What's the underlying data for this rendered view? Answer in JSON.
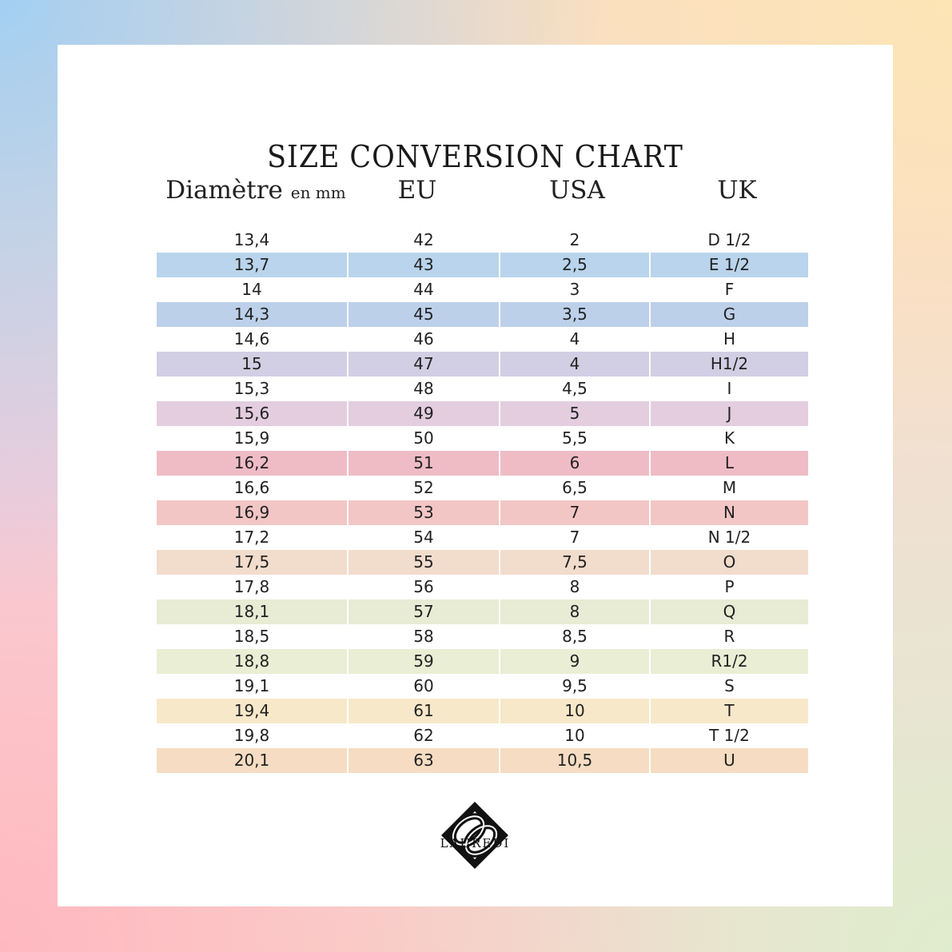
{
  "title": "SIZE CONVERSION CHART",
  "headers": {
    "diameter": "Diamètre",
    "diameter_unit": "en mm",
    "eu": "EU",
    "usa": "USA",
    "uk": "UK"
  },
  "rows": [
    {
      "d": "13,4",
      "eu": "42",
      "usa": "2",
      "uk": "D 1/2",
      "color": ""
    },
    {
      "d": "13,7",
      "eu": "43",
      "usa": "2,5",
      "uk": "E 1/2",
      "color": "#b9d4ec"
    },
    {
      "d": "14",
      "eu": "44",
      "usa": "3",
      "uk": "F",
      "color": ""
    },
    {
      "d": "14,3",
      "eu": "45",
      "usa": "3,5",
      "uk": "G",
      "color": "#bdd0ea"
    },
    {
      "d": "14,6",
      "eu": "46",
      "usa": "4",
      "uk": "H",
      "color": ""
    },
    {
      "d": "15",
      "eu": "47",
      "usa": "4",
      "uk": "H1/2",
      "color": "#d2cee3"
    },
    {
      "d": "15,3",
      "eu": "48",
      "usa": "4,5",
      "uk": "I",
      "color": ""
    },
    {
      "d": "15,6",
      "eu": "49",
      "usa": "5",
      "uk": "J",
      "color": "#e3cddf"
    },
    {
      "d": "15,9",
      "eu": "50",
      "usa": "5,5",
      "uk": "K",
      "color": ""
    },
    {
      "d": "16,2",
      "eu": "51",
      "usa": "6",
      "uk": "L",
      "color": "#efbcc6"
    },
    {
      "d": "16,6",
      "eu": "52",
      "usa": "6,5",
      "uk": "M",
      "color": ""
    },
    {
      "d": "16,9",
      "eu": "53",
      "usa": "7",
      "uk": "N",
      "color": "#f2c6c5"
    },
    {
      "d": "17,2",
      "eu": "54",
      "usa": "7",
      "uk": "N 1/2",
      "color": ""
    },
    {
      "d": "17,5",
      "eu": "55",
      "usa": "7,5",
      "uk": "O",
      "color": "#f2dccc"
    },
    {
      "d": "17,8",
      "eu": "56",
      "usa": "8",
      "uk": "P",
      "color": ""
    },
    {
      "d": "18,1",
      "eu": "57",
      "usa": "8",
      "uk": "Q",
      "color": "#e8ecd4"
    },
    {
      "d": "18,5",
      "eu": "58",
      "usa": "8,5",
      "uk": "R",
      "color": ""
    },
    {
      "d": "18,8",
      "eu": "59",
      "usa": "9",
      "uk": "R1/2",
      "color": "#eaeed4"
    },
    {
      "d": "19,1",
      "eu": "60",
      "usa": "9,5",
      "uk": "S",
      "color": ""
    },
    {
      "d": "19,4",
      "eu": "61",
      "usa": "10",
      "uk": "T",
      "color": "#f7e8c9"
    },
    {
      "d": "19,8",
      "eu": "62",
      "usa": "10",
      "uk": "T 1/2",
      "color": ""
    },
    {
      "d": "20,1",
      "eu": "63",
      "usa": "10,5",
      "uk": "U",
      "color": "#f5dcc2"
    }
  ],
  "logo": {
    "icon": "lauredi-knot-logo-icon",
    "brand": "LAUREDI"
  }
}
